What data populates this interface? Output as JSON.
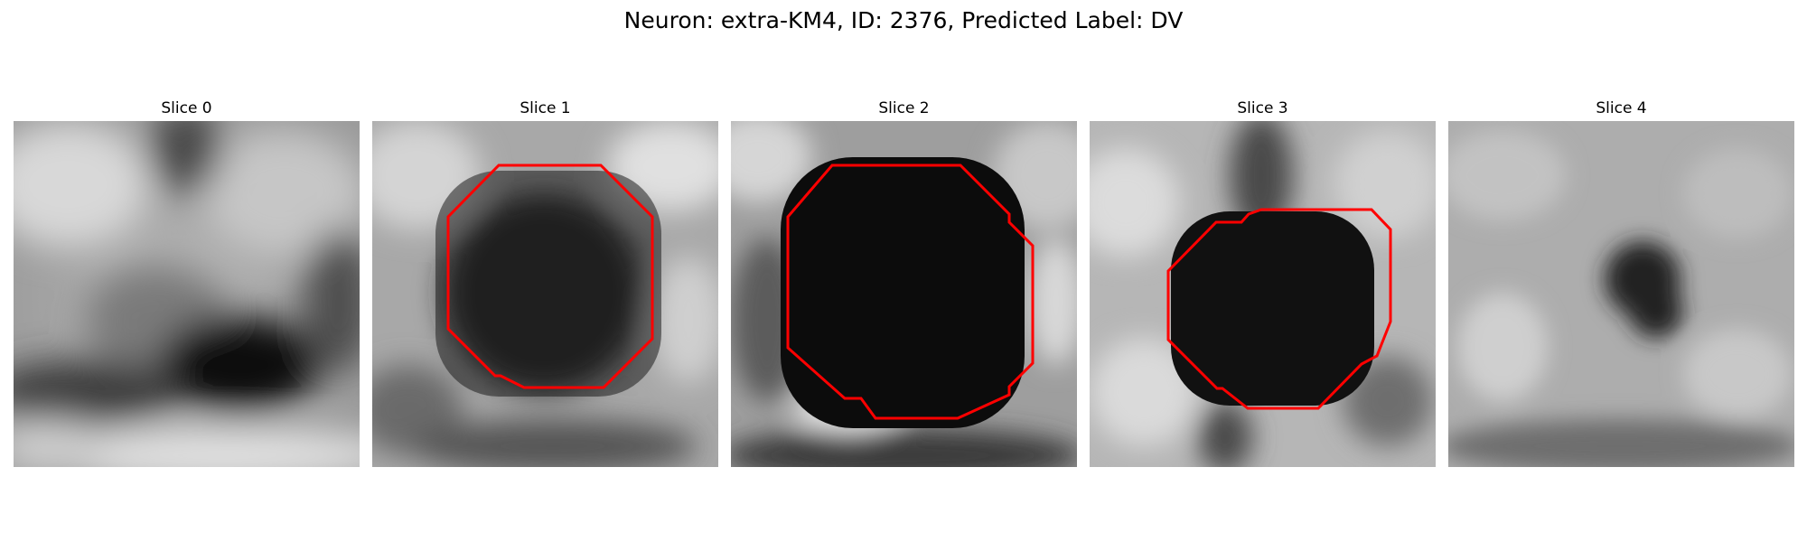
{
  "figure": {
    "title": "Neuron: extra-KM4, ID: 2376, Predicted Label: DV"
  },
  "panels": [
    {
      "title": "Slice 0",
      "has_contour": false
    },
    {
      "title": "Slice 1",
      "has_contour": true
    },
    {
      "title": "Slice 2",
      "has_contour": true
    },
    {
      "title": "Slice 3",
      "has_contour": true
    },
    {
      "title": "Slice 4",
      "has_contour": false
    }
  ],
  "colors": {
    "contour": "#ff0000",
    "background": "#ffffff",
    "colormap": "grayscale"
  }
}
